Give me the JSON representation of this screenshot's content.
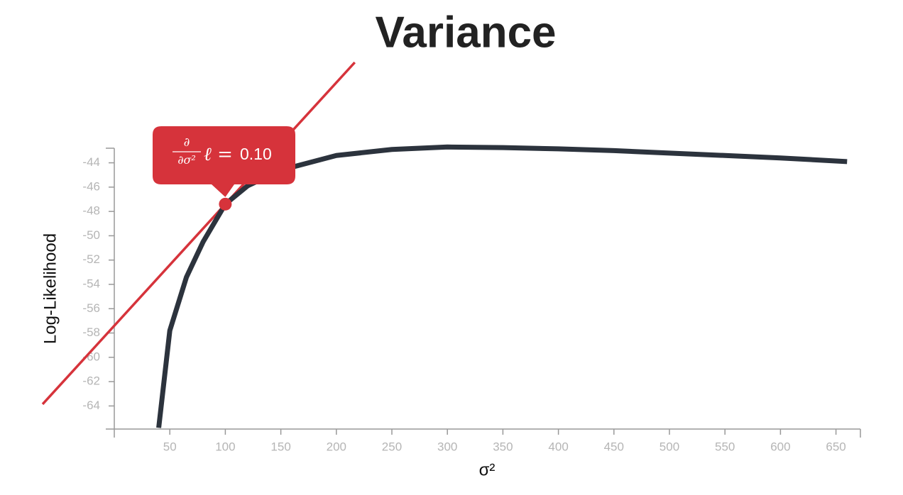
{
  "chart_data": {
    "type": "line",
    "title": "Variance",
    "x_label": "σ²",
    "y_label": "Log-Likelihood",
    "x": [
      40,
      50,
      65,
      80,
      100,
      120,
      150,
      200,
      250,
      300,
      350,
      400,
      450,
      500,
      550,
      600,
      660
    ],
    "series": [
      {
        "name": "Log-Likelihood",
        "color": "#2c333d",
        "values": [
          -65.8,
          -57.8,
          -53.4,
          -50.5,
          -47.4,
          -45.9,
          -44.6,
          -43.4,
          -42.9,
          -42.7,
          -42.75,
          -42.85,
          -43.0,
          -43.2,
          -43.4,
          -43.6,
          -43.9
        ]
      }
    ],
    "tangent": {
      "x": 100,
      "y": -47.4,
      "slope": 0.1,
      "color": "#d6333b",
      "numerator": "∂",
      "denominator": "∂σ²",
      "symbol": "ℓ =",
      "value_label": "0.10"
    },
    "xlim": [
      0,
      672
    ],
    "ylim": [
      -65.9,
      -42.8
    ],
    "xticks": [
      50,
      100,
      150,
      200,
      250,
      300,
      350,
      400,
      450,
      500,
      550,
      600,
      650
    ],
    "yticks": [
      -44,
      -46,
      -48,
      -50,
      -52,
      -54,
      -56,
      -58,
      -60,
      -62,
      -64
    ]
  }
}
